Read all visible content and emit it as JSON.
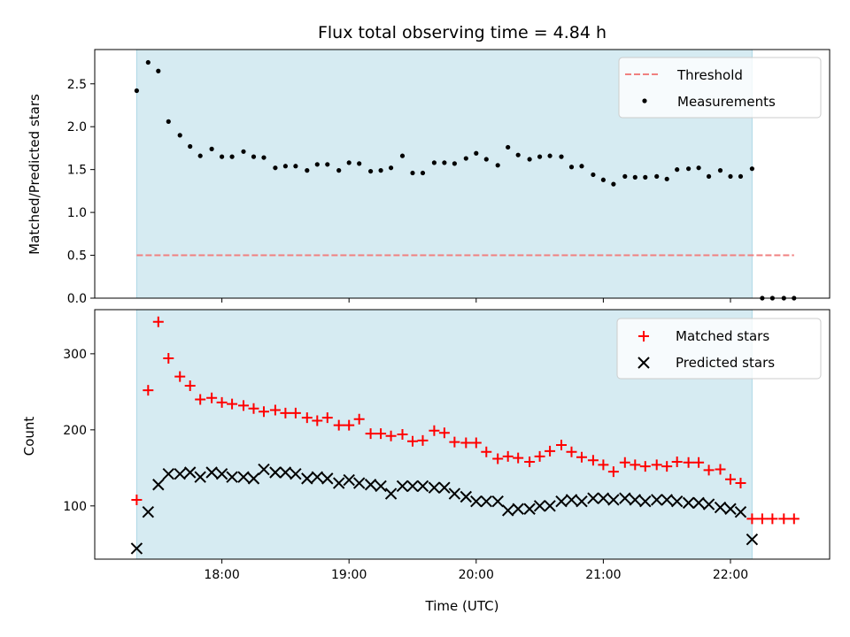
{
  "chart_data": [
    {
      "type": "scatter",
      "title": "Flux total observing time = 4.84 h",
      "ylabel": "Matched/Predicted stars",
      "xlabel": "",
      "x_unit": "hours (UTC)",
      "xlim": [
        17.0,
        22.78
      ],
      "ylim": [
        0.0,
        2.9
      ],
      "yticks": [
        0.0,
        0.5,
        1.0,
        1.5,
        2.0,
        2.5
      ],
      "ytick_labels": [
        "0.0",
        "0.5",
        "1.0",
        "1.5",
        "2.0",
        "2.5"
      ],
      "shaded_span": [
        17.33,
        22.17
      ],
      "shaded_color": "#add8e6",
      "legend": {
        "position": "upper right",
        "entries": [
          "Threshold",
          "Measurements"
        ]
      },
      "series": [
        {
          "name": "Threshold",
          "kind": "dashed-line",
          "color": "#f08080",
          "x": [
            17.33,
            22.5
          ],
          "y": [
            0.5,
            0.5
          ]
        },
        {
          "name": "Measurements",
          "kind": "points",
          "color": "#000000",
          "x": [
            17.33,
            17.42,
            17.5,
            17.58,
            17.67,
            17.75,
            17.83,
            17.92,
            18.0,
            18.08,
            18.17,
            18.25,
            18.33,
            18.42,
            18.5,
            18.58,
            18.67,
            18.75,
            18.83,
            18.92,
            19.0,
            19.08,
            19.17,
            19.25,
            19.33,
            19.42,
            19.5,
            19.58,
            19.67,
            19.75,
            19.83,
            19.92,
            20.0,
            20.08,
            20.17,
            20.25,
            20.33,
            20.42,
            20.5,
            20.58,
            20.67,
            20.75,
            20.83,
            20.92,
            21.0,
            21.08,
            21.17,
            21.25,
            21.33,
            21.42,
            21.5,
            21.58,
            21.67,
            21.75,
            21.83,
            21.92,
            22.0,
            22.08,
            22.17,
            22.25,
            22.33,
            22.42,
            22.5
          ],
          "y": [
            2.42,
            2.75,
            2.65,
            2.06,
            1.9,
            1.77,
            1.66,
            1.74,
            1.65,
            1.65,
            1.71,
            1.65,
            1.64,
            1.52,
            1.54,
            1.54,
            1.49,
            1.56,
            1.56,
            1.49,
            1.58,
            1.57,
            1.48,
            1.49,
            1.52,
            1.66,
            1.46,
            1.46,
            1.58,
            1.58,
            1.57,
            1.63,
            1.69,
            1.62,
            1.55,
            1.76,
            1.67,
            1.62,
            1.65,
            1.66,
            1.65,
            1.53,
            1.54,
            1.44,
            1.38,
            1.33,
            1.42,
            1.41,
            1.41,
            1.42,
            1.39,
            1.5,
            1.51,
            1.52,
            1.42,
            1.49,
            1.42,
            1.42,
            1.51,
            0.0,
            0.0,
            0.0,
            0.0
          ]
        }
      ]
    },
    {
      "type": "scatter",
      "title": "",
      "ylabel": "Count",
      "xlabel": "Time (UTC)",
      "x_unit": "hours (UTC)",
      "xlim": [
        17.0,
        22.78
      ],
      "ylim": [
        30,
        358
      ],
      "yticks": [
        100,
        200,
        300
      ],
      "ytick_labels": [
        "100",
        "200",
        "300"
      ],
      "xticks": [
        18,
        19,
        20,
        21,
        22
      ],
      "xtick_labels": [
        "18:00",
        "19:00",
        "20:00",
        "21:00",
        "22:00"
      ],
      "shaded_span": [
        17.33,
        22.17
      ],
      "shaded_color": "#add8e6",
      "legend": {
        "position": "upper right",
        "entries": [
          "Matched stars",
          "Predicted stars"
        ]
      },
      "series": [
        {
          "name": "Matched stars",
          "kind": "plus",
          "color": "#ff0000",
          "x": [
            17.33,
            17.42,
            17.5,
            17.58,
            17.67,
            17.75,
            17.83,
            17.92,
            18.0,
            18.08,
            18.17,
            18.25,
            18.33,
            18.42,
            18.5,
            18.58,
            18.67,
            18.75,
            18.83,
            18.92,
            19.0,
            19.08,
            19.17,
            19.25,
            19.33,
            19.42,
            19.5,
            19.58,
            19.67,
            19.75,
            19.83,
            19.92,
            20.0,
            20.08,
            20.17,
            20.25,
            20.33,
            20.42,
            20.5,
            20.58,
            20.67,
            20.75,
            20.83,
            20.92,
            21.0,
            21.08,
            21.17,
            21.25,
            21.33,
            21.42,
            21.5,
            21.58,
            21.67,
            21.75,
            21.83,
            21.92,
            22.0,
            22.08,
            22.17,
            22.25,
            22.33,
            22.42,
            22.5
          ],
          "y": [
            108,
            252,
            342,
            294,
            270,
            258,
            240,
            242,
            236,
            234,
            232,
            228,
            224,
            226,
            222,
            222,
            216,
            212,
            216,
            206,
            206,
            214,
            195,
            195,
            192,
            194,
            185,
            186,
            199,
            196,
            184,
            183,
            183,
            171,
            162,
            165,
            163,
            158,
            165,
            172,
            180,
            171,
            164,
            160,
            154,
            145,
            157,
            154,
            152,
            154,
            152,
            158,
            157,
            157,
            147,
            148,
            135,
            130,
            83,
            83,
            83,
            83,
            83
          ]
        },
        {
          "name": "Predicted stars",
          "kind": "cross",
          "color": "#000000",
          "x": [
            17.33,
            17.42,
            17.5,
            17.58,
            17.67,
            17.75,
            17.83,
            17.92,
            18.0,
            18.08,
            18.17,
            18.25,
            18.33,
            18.42,
            18.5,
            18.58,
            18.67,
            18.75,
            18.83,
            18.92,
            19.0,
            19.08,
            19.17,
            19.25,
            19.33,
            19.42,
            19.5,
            19.58,
            19.67,
            19.75,
            19.83,
            19.92,
            20.0,
            20.08,
            20.17,
            20.25,
            20.33,
            20.42,
            20.5,
            20.58,
            20.67,
            20.75,
            20.83,
            20.92,
            21.0,
            21.08,
            21.17,
            21.25,
            21.33,
            21.42,
            21.5,
            21.58,
            21.67,
            21.75,
            21.83,
            21.92,
            22.0,
            22.08,
            22.17
          ],
          "y": [
            44,
            92,
            128,
            142,
            142,
            144,
            138,
            144,
            142,
            138,
            138,
            136,
            148,
            144,
            144,
            142,
            136,
            138,
            136,
            130,
            134,
            130,
            128,
            126,
            116,
            126,
            126,
            126,
            124,
            124,
            116,
            112,
            106,
            106,
            106,
            94,
            96,
            96,
            100,
            100,
            106,
            108,
            106,
            110,
            110,
            108,
            110,
            108,
            106,
            108,
            108,
            106,
            104,
            104,
            102,
            98,
            96,
            92,
            56
          ]
        }
      ]
    }
  ]
}
